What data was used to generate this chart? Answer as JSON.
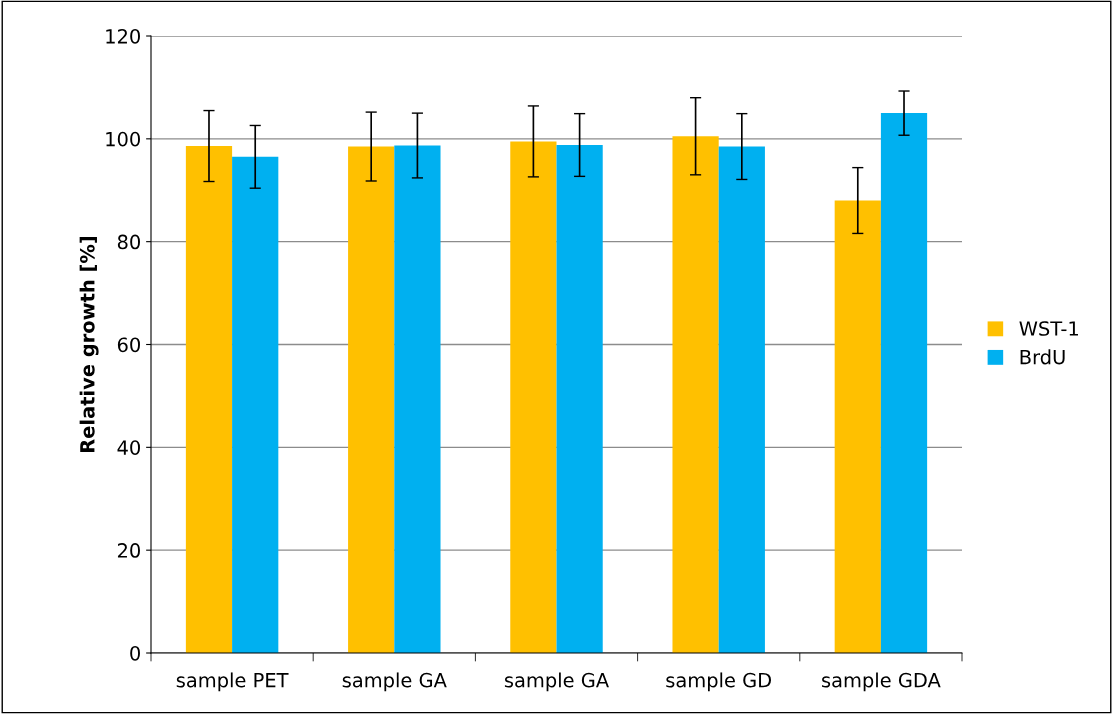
{
  "chart_data": {
    "type": "bar",
    "ylabel": "Relative growth [%]",
    "categories": [
      "sample PET",
      "sample GA",
      "sample GA",
      "sample GD",
      "sample GDA"
    ],
    "series": [
      {
        "name": "WST-1",
        "color": "#ffc000",
        "values": [
          98.6,
          98.5,
          99.5,
          100.5,
          88.0
        ],
        "errors": [
          6.9,
          6.7,
          6.9,
          7.5,
          6.4
        ]
      },
      {
        "name": "BrdU",
        "color": "#00b0f0",
        "values": [
          96.5,
          98.7,
          98.8,
          98.5,
          105.0
        ],
        "errors": [
          6.1,
          6.3,
          6.1,
          6.4,
          4.3
        ]
      }
    ],
    "ylim": [
      0,
      120
    ],
    "yticks": [
      0,
      20,
      40,
      60,
      80,
      100,
      120
    ],
    "grid": "y",
    "legend": "right"
  }
}
